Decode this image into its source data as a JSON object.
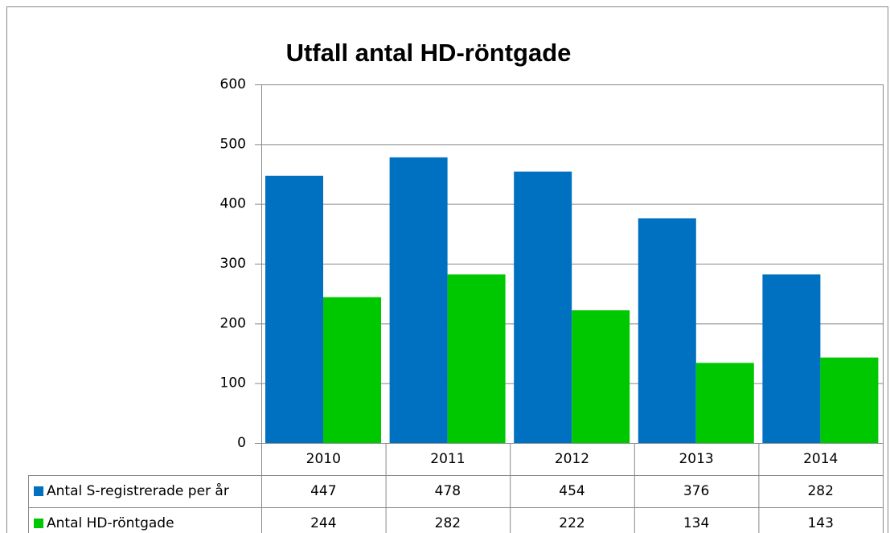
{
  "chart_data": {
    "type": "bar",
    "title": "Utfall antal HD-röntgade",
    "categories": [
      "2010",
      "2011",
      "2012",
      "2013",
      "2014"
    ],
    "series": [
      {
        "name": "Antal S-registrerade per år",
        "color": "#0070c0",
        "values": [
          447,
          478,
          454,
          376,
          282
        ]
      },
      {
        "name": "Antal HD-röntgade",
        "color": "#00c800",
        "values": [
          244,
          282,
          222,
          134,
          143
        ]
      }
    ],
    "ylim": [
      0,
      600
    ],
    "yticks": [
      0,
      100,
      200,
      300,
      400,
      500,
      600
    ],
    "grid": true,
    "legend": "data-table"
  }
}
